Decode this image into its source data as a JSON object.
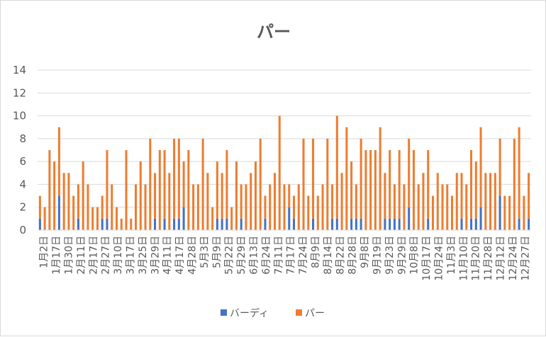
{
  "chart_data": {
    "type": "bar",
    "stacked": true,
    "title": "パー",
    "ylim": [
      0,
      14
    ],
    "yticks": [
      0,
      2,
      4,
      6,
      8,
      10,
      12,
      14
    ],
    "grid": true,
    "legend_position": "bottom",
    "series": [
      {
        "name": "バーディ",
        "color": "#4472c4",
        "values": [
          1,
          0,
          0,
          0,
          3,
          0,
          0,
          0,
          1,
          0,
          0,
          0,
          0,
          1,
          1,
          0,
          0,
          0,
          0,
          0,
          0,
          0,
          0,
          0,
          1,
          0,
          1,
          0,
          1,
          1,
          2,
          0,
          0,
          0,
          0,
          0,
          0,
          1,
          1,
          1,
          0,
          0,
          1,
          0,
          0,
          0,
          0,
          1,
          0,
          0,
          0,
          0,
          2,
          1,
          0,
          0,
          0,
          1,
          0,
          0,
          0,
          1,
          1,
          0,
          0,
          1,
          1,
          1,
          0,
          0,
          0,
          0,
          1,
          1,
          1,
          1,
          0,
          2,
          0,
          0,
          0,
          1,
          0,
          0,
          0,
          0,
          0,
          0,
          1,
          0,
          1,
          1,
          2,
          0,
          0,
          0,
          3,
          0,
          0,
          0,
          1,
          0,
          1
        ]
      },
      {
        "name": "パー",
        "color": "#ed7d31",
        "values": [
          2,
          2,
          7,
          6,
          6,
          5,
          5,
          3,
          3,
          6,
          4,
          2,
          2,
          2,
          6,
          4,
          2,
          1,
          7,
          1,
          4,
          6,
          4,
          8,
          4,
          7,
          6,
          5,
          7,
          7,
          4,
          7,
          4,
          4,
          8,
          5,
          2,
          5,
          4,
          6,
          2,
          6,
          3,
          4,
          5,
          6,
          8,
          2,
          4,
          5,
          10,
          4,
          2,
          2,
          4,
          8,
          3,
          7,
          3,
          4,
          8,
          3,
          9,
          5,
          9,
          5,
          3,
          7,
          7,
          7,
          7,
          9,
          4,
          6,
          3,
          6,
          4,
          6,
          7,
          4,
          5,
          6,
          3,
          5,
          4,
          4,
          3,
          5,
          4,
          4,
          6,
          5,
          7,
          5,
          5,
          5,
          5,
          3,
          3,
          8,
          8,
          3,
          4
        ],
        "__note": "placeholder"
      }
    ],
    "category_labels": [
      "1月2日",
      "1月17日",
      "1月30日",
      "2月11日",
      "2月17日",
      "2月27日",
      "3月10日",
      "3月17日",
      "3月25日",
      "3月29日",
      "4月11日",
      "4月17日",
      "4月28日",
      "5月3日",
      "5月9日",
      "5月22日",
      "5月29日",
      "6月13日",
      "6月24日",
      "7月11日",
      "7月17日",
      "7月24日",
      "8月9日",
      "8月14日",
      "8月22日",
      "8月28日",
      "9月8日",
      "9月19日",
      "9月23日",
      "9月29日",
      "10月8日",
      "10月17日",
      "10月24日",
      "11月3日",
      "11月10日",
      "11月20日",
      "11月28日",
      "12月12日",
      "12月24日",
      "12月27日"
    ]
  },
  "legend": {
    "birdie": "バーディ",
    "par": "パー"
  }
}
